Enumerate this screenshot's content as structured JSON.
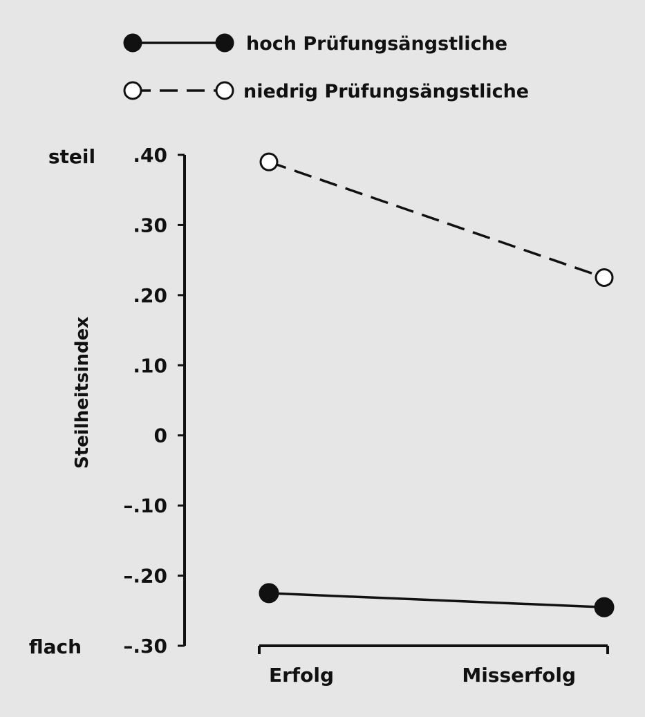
{
  "chart_data": {
    "type": "line",
    "categories": [
      "Erfolg",
      "Misserfolg"
    ],
    "series": [
      {
        "name": "hoch Prüfungsängstliche",
        "values": [
          -0.225,
          -0.245
        ],
        "marker": "filled",
        "line": "solid"
      },
      {
        "name": "niedrig Prüfungsängstliche",
        "values": [
          0.39,
          0.225
        ],
        "marker": "open",
        "line": "dashed"
      }
    ],
    "ylabel": "Steilheitsindex",
    "ylim": [
      -0.3,
      0.4
    ],
    "yticks": [
      {
        "value": 0.4,
        "label": ".40"
      },
      {
        "value": 0.3,
        "label": ".30"
      },
      {
        "value": 0.2,
        "label": ".20"
      },
      {
        "value": 0.1,
        "label": ".10"
      },
      {
        "value": 0,
        "label": "0"
      },
      {
        "value": -0.1,
        "label": "–.10"
      },
      {
        "value": -0.2,
        "label": "–.20"
      },
      {
        "value": -0.3,
        "label": "–.30"
      }
    ],
    "y_top_annotation": "steil",
    "y_bottom_annotation": "flach",
    "legend_position": "top",
    "grid": false,
    "colors": {
      "line": "#111111",
      "background": "#e6e6e6",
      "open_marker_fill": "#ffffff"
    }
  }
}
